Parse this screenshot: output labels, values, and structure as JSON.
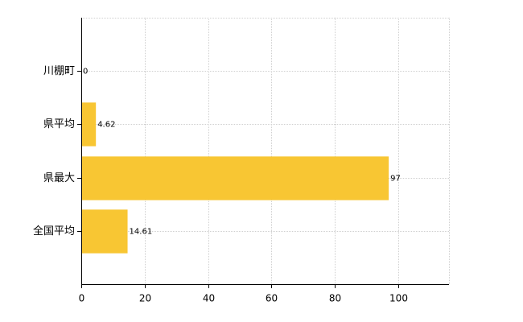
{
  "chart_data": {
    "type": "bar",
    "orientation": "horizontal",
    "categories": [
      "川棚町",
      "県平均",
      "県最大",
      "全国平均"
    ],
    "values": [
      0,
      4.62,
      97,
      14.61
    ],
    "color": "#f8c633",
    "xlim": [
      0,
      116
    ],
    "xticks": [
      0,
      20,
      40,
      60,
      80,
      100
    ],
    "grid": true
  }
}
